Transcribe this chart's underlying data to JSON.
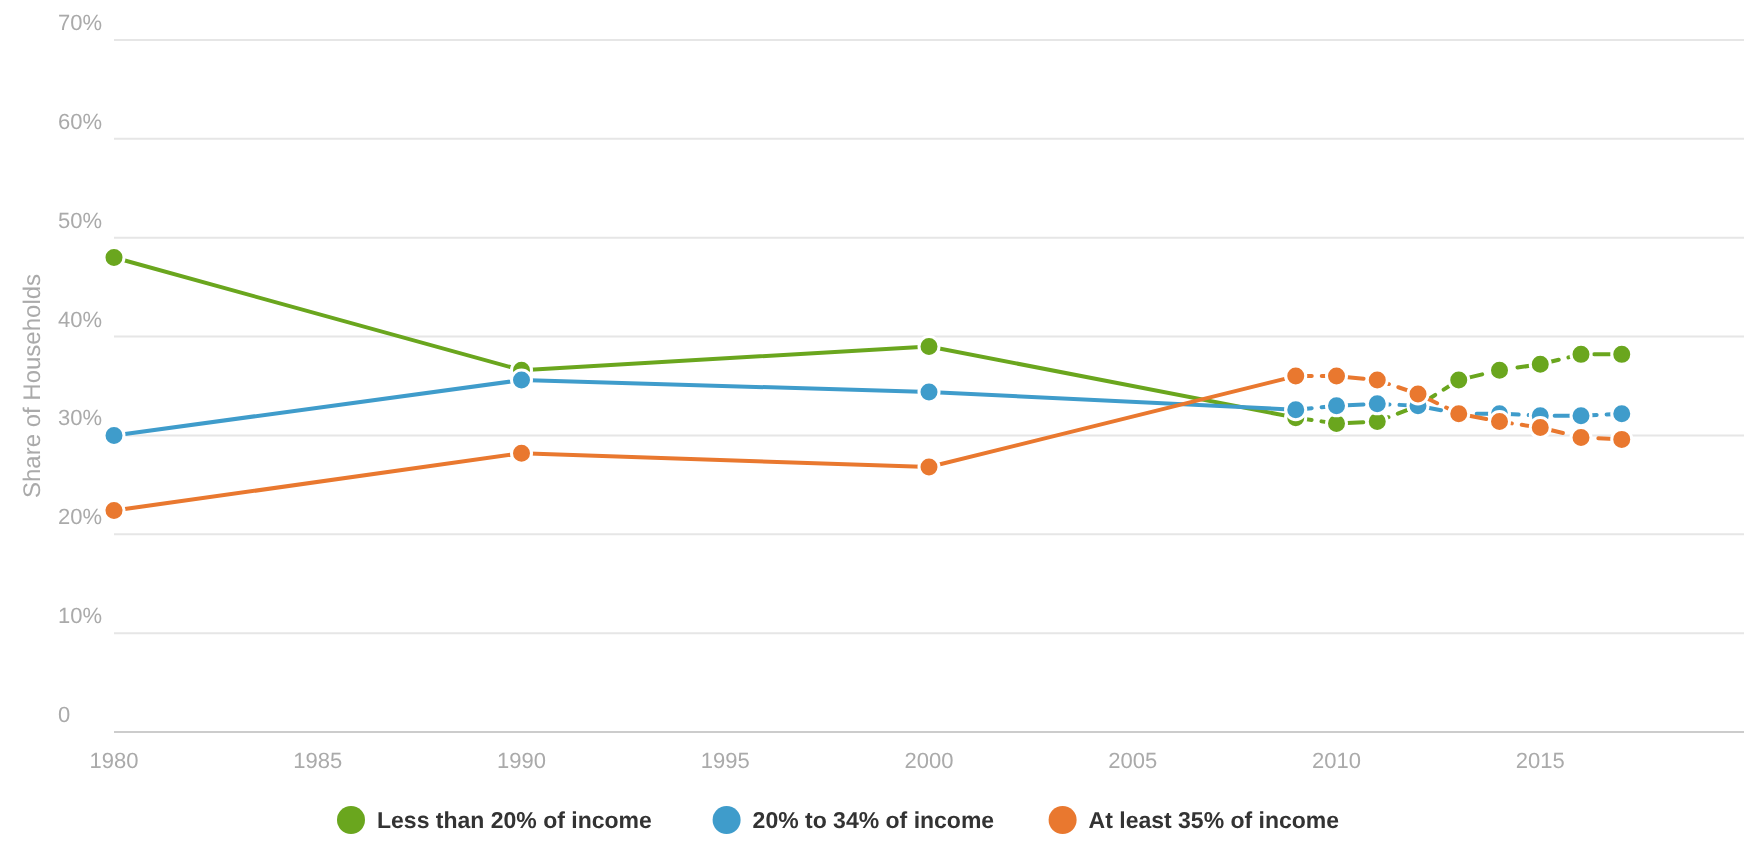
{
  "chart_data": {
    "type": "line",
    "ylabel": "Share of Households",
    "xlim": [
      1980,
      2020
    ],
    "xticks": [
      1980,
      1985,
      1990,
      1995,
      2000,
      2005,
      2010,
      2015
    ],
    "ylim": [
      0,
      70
    ],
    "yticks": [
      {
        "value": 0,
        "label": "0"
      },
      {
        "value": 10,
        "label": "10%"
      },
      {
        "value": 20,
        "label": "20%"
      },
      {
        "value": 30,
        "label": "30%"
      },
      {
        "value": 40,
        "label": "40%"
      },
      {
        "value": 50,
        "label": "50%"
      },
      {
        "value": 60,
        "label": "60%"
      },
      {
        "value": 70,
        "label": "70%"
      }
    ],
    "grid": "y",
    "legend": "bottom",
    "marker": "circle",
    "series": [
      {
        "name": "Less than 20% of income",
        "color": "#6aa61e",
        "line_style": "solid",
        "x": [
          1980,
          1990,
          2000,
          2009
        ],
        "values": [
          48,
          36.6,
          39,
          31.8
        ]
      },
      {
        "name": "20% to 34% of income",
        "color": "#3f9ccb",
        "line_style": "solid",
        "x": [
          1980,
          1990,
          2000,
          2009
        ],
        "values": [
          30,
          35.6,
          34.4,
          32.6
        ]
      },
      {
        "name": "At least 35% of income",
        "color": "#e9782f",
        "line_style": "solid",
        "x": [
          1980,
          1990,
          2000,
          2009
        ],
        "values": [
          22.4,
          28.2,
          26.8,
          36
        ]
      },
      {
        "color": "#6aa61e",
        "line_style": "dashed",
        "x": [
          2009,
          2010,
          2011,
          2012,
          2013,
          2014,
          2015,
          2016,
          2017
        ],
        "values": [
          31.8,
          31.2,
          31.4,
          33,
          35.6,
          36.6,
          37.2,
          38.2,
          38.2
        ]
      },
      {
        "color": "#3f9ccb",
        "line_style": "dashed",
        "x": [
          2009,
          2010,
          2011,
          2012,
          2013,
          2014,
          2015,
          2016,
          2017
        ],
        "values": [
          32.6,
          33,
          33.2,
          33,
          32.2,
          32.2,
          32,
          32,
          32.2
        ]
      },
      {
        "color": "#e9782f",
        "line_style": "dashed",
        "x": [
          2009,
          2010,
          2011,
          2012,
          2013,
          2014,
          2015,
          2016,
          2017
        ],
        "values": [
          36,
          36,
          35.6,
          34.2,
          32.2,
          31.4,
          30.8,
          29.8,
          29.6
        ]
      }
    ]
  }
}
